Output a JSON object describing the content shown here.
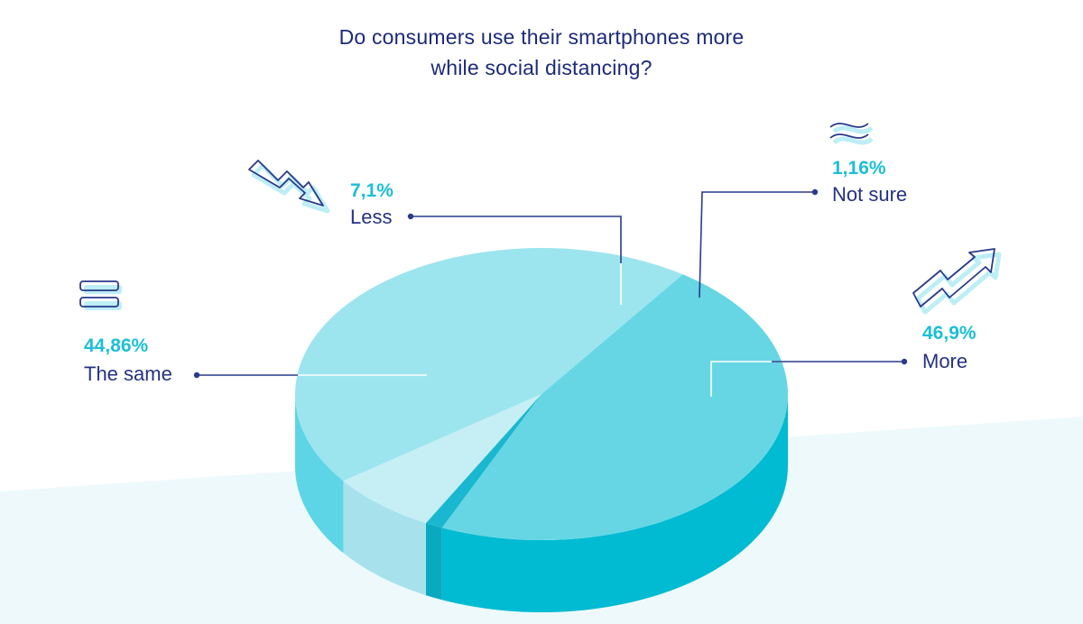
{
  "chart_data": {
    "type": "pie",
    "title": "Do consumers use their smartphones more while social distancing?",
    "title_lines": [
      "Do consumers use their smartphones more",
      "while social distancing?"
    ],
    "slices": [
      {
        "label": "More",
        "value": 46.9,
        "value_text": "46,9%",
        "color": "#66d6e5",
        "side_color": "#00bbd2",
        "icon": "trend-up-arrow-icon"
      },
      {
        "label": "Not sure",
        "value": 1.16,
        "value_text": "1,16%",
        "color": "#1ab7d0",
        "side_color": "#0aa9c2",
        "icon": "approx-tilde-icon"
      },
      {
        "label": "Less",
        "value": 7.1,
        "value_text": "7,1%",
        "color": "#c6eff5",
        "side_color": "#a7e2ec",
        "icon": "trend-down-arrow-icon"
      },
      {
        "label": "The same",
        "value": 44.86,
        "value_text": "44,86%",
        "color": "#9de5ee",
        "side_color": "#5dd5e6",
        "icon": "equals-icon"
      }
    ],
    "legend": "callout-labels"
  }
}
